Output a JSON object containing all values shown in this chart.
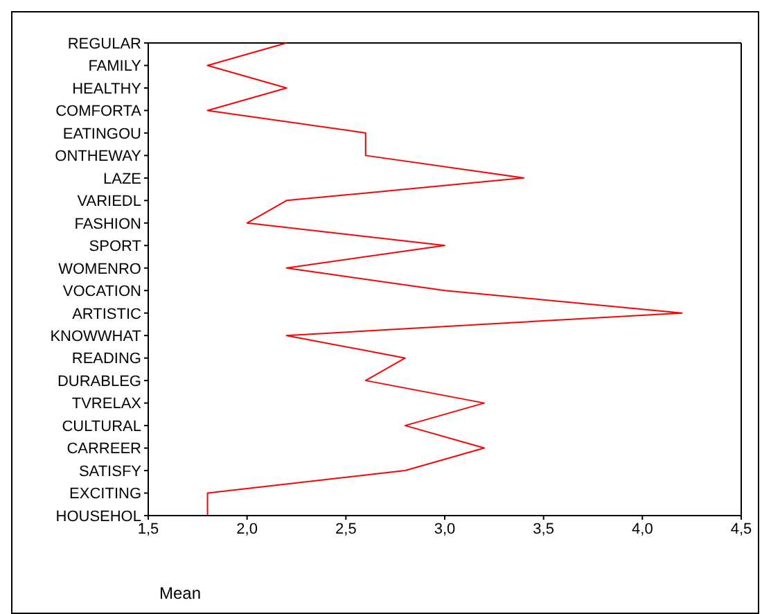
{
  "chart_data": {
    "type": "line",
    "orientation": "horizontal",
    "xlabel": "Mean",
    "categories": [
      "REGULAR",
      "FAMILY",
      "HEALTHY",
      "COMFORTA",
      "EATINGOU",
      "ONTHEWAY",
      "LAZE",
      "VARIEDL",
      "FASHION",
      "SPORT",
      "WOMENRO",
      "VOCATION",
      "ARTISTIC",
      "KNOWWHAT",
      "READING",
      "DURABLEG",
      "TVRELAX",
      "CULTURAL",
      "CARREER",
      "SATISFY",
      "EXCITING",
      "HOUSEHOL"
    ],
    "series": [
      {
        "color": "#ff0000",
        "values": [
          2.2,
          1.8,
          2.2,
          1.8,
          2.6,
          2.6,
          3.4,
          2.2,
          2.0,
          3.0,
          2.2,
          3.0,
          4.2,
          2.2,
          2.8,
          2.6,
          3.2,
          2.8,
          3.2,
          2.8,
          1.8,
          1.8
        ]
      }
    ],
    "xlim": [
      1.5,
      4.5
    ],
    "xticks": [
      {
        "value": 1.5,
        "label": "1,5"
      },
      {
        "value": 2.0,
        "label": "2,0"
      },
      {
        "value": 2.5,
        "label": "2,5"
      },
      {
        "value": 3.0,
        "label": "3,0"
      },
      {
        "value": 3.5,
        "label": "3,5"
      },
      {
        "value": 4.0,
        "label": "4,0"
      },
      {
        "value": 4.5,
        "label": "4,5"
      }
    ],
    "grid": false,
    "legend": false,
    "marker": "none",
    "line_style": "solid"
  }
}
